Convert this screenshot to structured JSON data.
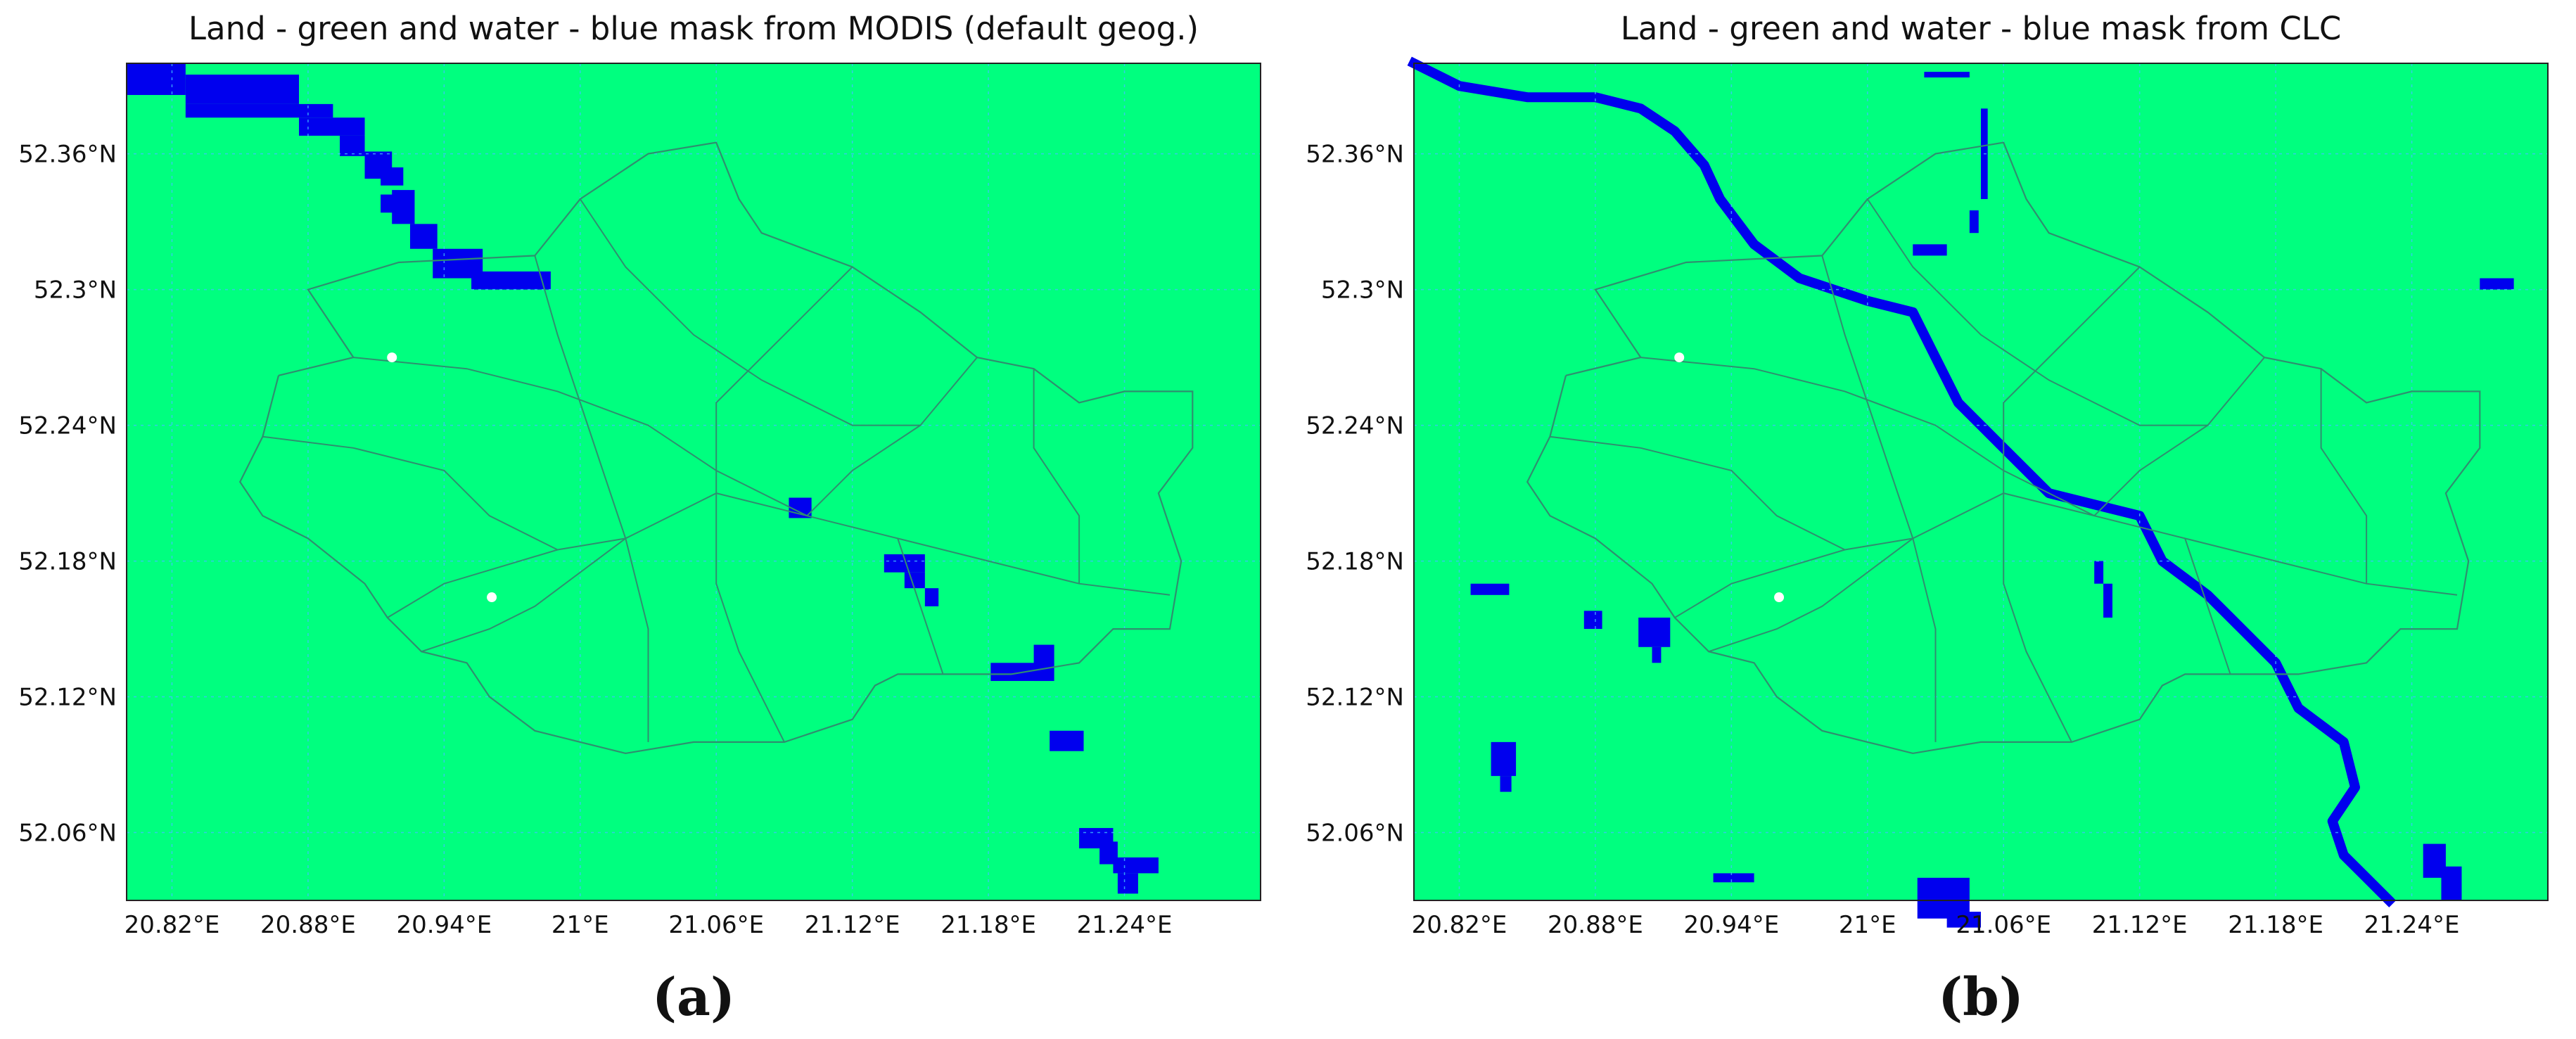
{
  "figure": {
    "lon_ticks": [
      "20.82°E",
      "20.88°E",
      "20.94°E",
      "21°E",
      "21.06°E",
      "21.12°E",
      "21.18°E",
      "21.24°E"
    ],
    "lon_values": [
      20.82,
      20.88,
      20.94,
      21.0,
      21.06,
      21.12,
      21.18,
      21.24
    ],
    "lat_ticks": [
      "52.36°N",
      "52.3°N",
      "52.24°N",
      "52.18°N",
      "52.12°N",
      "52.06°N"
    ],
    "lat_values": [
      52.36,
      52.3,
      52.24,
      52.18,
      52.12,
      52.06
    ],
    "lon_range": [
      20.8,
      21.3
    ],
    "lat_range": [
      52.03,
      52.4
    ],
    "land_color": "#00ff7f",
    "water_color": "#0000ee",
    "boundary_color": "#2f8f6f",
    "grid_color": "#40c0ff",
    "marker_color": "#ffffff",
    "markers": [
      {
        "lon": 20.917,
        "lat": 52.27
      },
      {
        "lon": 20.961,
        "lat": 52.164
      }
    ]
  },
  "panels": [
    {
      "title": "Land - green and water - blue mask from MODIS (default geog.)",
      "label": "(a)",
      "water_cells": [
        [
          20.8,
          52.386,
          20.826,
          52.4
        ],
        [
          20.826,
          52.382,
          20.876,
          52.395
        ],
        [
          20.826,
          52.376,
          20.891,
          52.382
        ],
        [
          20.876,
          52.368,
          20.905,
          52.376
        ],
        [
          20.894,
          52.359,
          20.905,
          52.368
        ],
        [
          20.905,
          52.349,
          20.917,
          52.361
        ],
        [
          20.912,
          52.346,
          20.922,
          52.354
        ],
        [
          20.917,
          52.329,
          20.927,
          52.344
        ],
        [
          20.912,
          52.334,
          20.92,
          52.342
        ],
        [
          20.925,
          52.318,
          20.937,
          52.329
        ],
        [
          20.935,
          52.305,
          20.957,
          52.318
        ],
        [
          20.952,
          52.3,
          20.987,
          52.308
        ],
        [
          21.092,
          52.199,
          21.102,
          52.208
        ],
        [
          21.134,
          52.175,
          21.152,
          52.183
        ],
        [
          21.143,
          52.168,
          21.152,
          52.175
        ],
        [
          21.152,
          52.16,
          21.158,
          52.168
        ],
        [
          21.181,
          52.127,
          21.207,
          52.135
        ],
        [
          21.2,
          52.127,
          21.209,
          52.143
        ],
        [
          21.207,
          52.096,
          21.222,
          52.105
        ],
        [
          21.22,
          52.053,
          21.235,
          52.062
        ],
        [
          21.229,
          52.046,
          21.237,
          52.056
        ],
        [
          21.235,
          52.042,
          21.255,
          52.049
        ],
        [
          21.237,
          52.033,
          21.246,
          52.042
        ]
      ]
    },
    {
      "title": "Land - green and water - blue mask from CLC",
      "label": "(b)"
    }
  ]
}
